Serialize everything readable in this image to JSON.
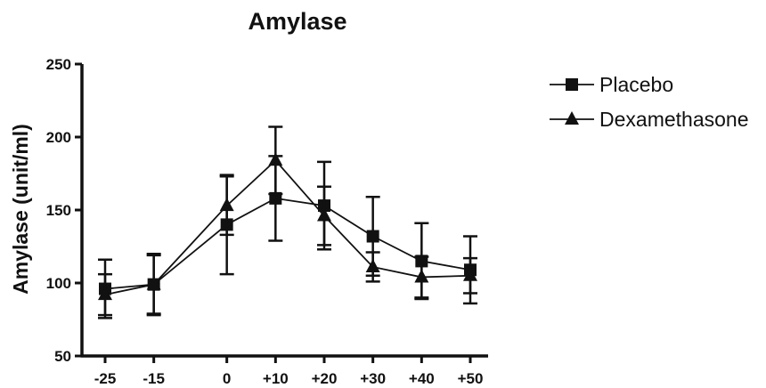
{
  "chart_data": {
    "type": "line",
    "title": "Amylase",
    "xlabel": "",
    "ylabel": "Amylase (unit/ml)",
    "ylim": [
      50,
      250
    ],
    "yticks": [
      50,
      100,
      150,
      200,
      250
    ],
    "categories": [
      "-25",
      "-15",
      "0",
      "+10",
      "+20",
      "+30",
      "+40",
      "+50"
    ],
    "x": [
      -25,
      -15,
      0,
      10,
      20,
      30,
      40,
      50
    ],
    "grid": false,
    "legend_position": "top-right",
    "series": [
      {
        "name": "Placebo",
        "marker": "square",
        "values": [
          96,
          99,
          140,
          158,
          153,
          132,
          115,
          109
        ],
        "errors": [
          20,
          21,
          34,
          29,
          30,
          27,
          26,
          23
        ]
      },
      {
        "name": "Dexamethasone",
        "marker": "triangle",
        "values": [
          92,
          99,
          153,
          184,
          146,
          111,
          104,
          105
        ],
        "errors": [
          14,
          20,
          20,
          23,
          20,
          10,
          14,
          12
        ]
      }
    ]
  }
}
